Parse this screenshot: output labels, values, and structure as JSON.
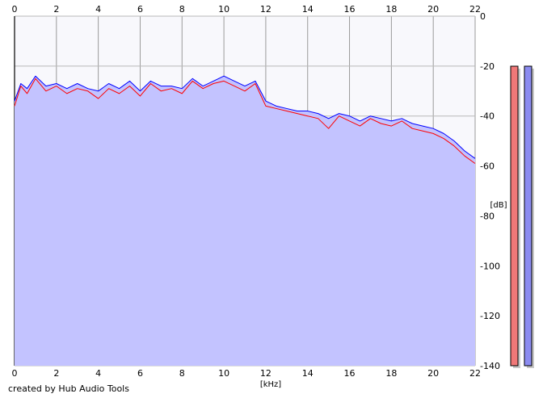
{
  "chart_data": {
    "type": "line",
    "xlabel": "[kHz]",
    "ylabel": "[dB]",
    "xlim": [
      0,
      22
    ],
    "ylim": [
      -140,
      0
    ],
    "xticks": [
      0,
      2,
      4,
      6,
      8,
      10,
      12,
      14,
      16,
      18,
      20,
      22
    ],
    "yticks": [
      0,
      -20,
      -40,
      -60,
      -80,
      -100,
      -120,
      -140
    ],
    "grid": true,
    "fill_color": "#c3c3ff",
    "series": [
      {
        "color": "#ff0000",
        "x": [
          0,
          0.3,
          0.6,
          1,
          1.5,
          2,
          2.5,
          3,
          3.5,
          4,
          4.5,
          5,
          5.5,
          6,
          6.5,
          7,
          7.5,
          8,
          8.5,
          9,
          9.5,
          10,
          10.5,
          11,
          11.5,
          12,
          12.5,
          13,
          13.5,
          14,
          14.5,
          15,
          15.5,
          16,
          16.5,
          17,
          17.5,
          18,
          18.5,
          19,
          19.5,
          20,
          20.5,
          21,
          21.5,
          22
        ],
        "values": [
          -36,
          -28,
          -31,
          -25,
          -30,
          -28,
          -31,
          -29,
          -30,
          -33,
          -29,
          -31,
          -28,
          -32,
          -27,
          -30,
          -29,
          -31,
          -26,
          -29,
          -27,
          -26,
          -28,
          -30,
          -27,
          -36,
          -37,
          -38,
          -39,
          -40,
          -41,
          -45,
          -40,
          -42,
          -44,
          -41,
          -43,
          -44,
          -42,
          -45,
          -46,
          -47,
          -49,
          -52,
          -56,
          -59
        ]
      },
      {
        "color": "#0000ff",
        "x": [
          0,
          0.3,
          0.6,
          1,
          1.5,
          2,
          2.5,
          3,
          3.5,
          4,
          4.5,
          5,
          5.5,
          6,
          6.5,
          7,
          7.5,
          8,
          8.5,
          9,
          9.5,
          10,
          10.5,
          11,
          11.5,
          12,
          12.5,
          13,
          13.5,
          14,
          14.5,
          15,
          15.5,
          16,
          16.5,
          17,
          17.5,
          18,
          18.5,
          19,
          19.5,
          20,
          20.5,
          21,
          21.5,
          22
        ],
        "values": [
          -34,
          -27,
          -29,
          -24,
          -28,
          -27,
          -29,
          -27,
          -29,
          -30,
          -27,
          -29,
          -26,
          -30,
          -26,
          -28,
          -28,
          -29,
          -25,
          -28,
          -26,
          -24,
          -26,
          -28,
          -26,
          -34,
          -36,
          -37,
          -38,
          -38,
          -39,
          -41,
          -39,
          -40,
          -42,
          -40,
          -41,
          -42,
          -41,
          -43,
          -44,
          -45,
          -47,
          -50,
          -54,
          -57
        ]
      }
    ]
  },
  "level_meters": [
    {
      "channel_color": "#f07878",
      "fill": 1.0
    },
    {
      "channel_color": "#8c8cf0",
      "fill": 1.0
    }
  ],
  "footer": {
    "credit": "created by Hub Audio Tools"
  }
}
